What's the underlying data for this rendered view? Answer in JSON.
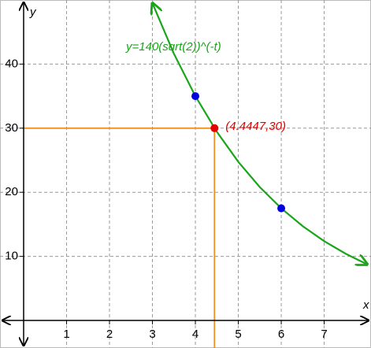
{
  "chart_data": {
    "type": "line",
    "x_label": "x",
    "y_label": "y",
    "xlim": [
      -0.55,
      8.09
    ],
    "ylim": [
      -4.3,
      50
    ],
    "xticks": [
      1,
      2,
      3,
      4,
      5,
      6,
      7
    ],
    "yticks": [
      10,
      20,
      30,
      40
    ],
    "grid": true,
    "series": [
      {
        "name": "y=140(sqrt(2))^(-t)",
        "color": "#1aa51a",
        "x": [
          3,
          3.5,
          4,
          4.5,
          5,
          5.5,
          6,
          6.5,
          7,
          7.5,
          8
        ],
        "values": [
          49.5,
          41.62,
          35,
          29.43,
          24.75,
          20.81,
          17.5,
          14.71,
          12.37,
          10.41,
          8.75
        ]
      }
    ],
    "points": [
      {
        "x": 4,
        "y": 35,
        "color": "#0000e0"
      },
      {
        "x": 6,
        "y": 17.5,
        "color": "#0000e0"
      },
      {
        "x": 4.4447,
        "y": 30,
        "color": "#e00000",
        "label": "(4.4447,30)"
      }
    ],
    "guide_color": "#f0901e"
  }
}
